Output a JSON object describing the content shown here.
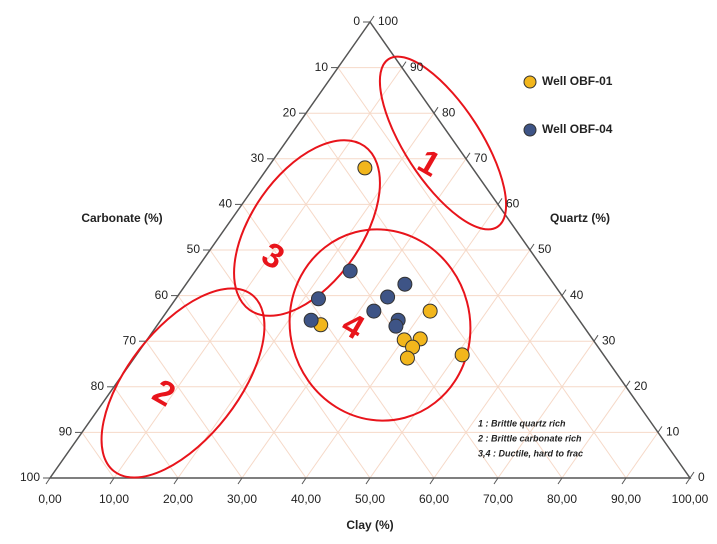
{
  "chart_data": {
    "type": "ternary",
    "axes": {
      "bottom": "Clay (%)",
      "left": "Carbonate (%)",
      "right": "Quartz (%)"
    },
    "clay_ticks": [
      {
        "value": 0,
        "label": "0,00"
      },
      {
        "value": 10,
        "label": "10,00"
      },
      {
        "value": 20,
        "label": "20,00"
      },
      {
        "value": 30,
        "label": "30,00"
      },
      {
        "value": 40,
        "label": "40,00"
      },
      {
        "value": 50,
        "label": "50,00"
      },
      {
        "value": 60,
        "label": "60,00"
      },
      {
        "value": 70,
        "label": "70,00"
      },
      {
        "value": 80,
        "label": "80,00"
      },
      {
        "value": 90,
        "label": "90,00"
      },
      {
        "value": 100,
        "label": "100,00"
      }
    ],
    "carbonate_ticks": [
      0,
      10,
      20,
      30,
      40,
      50,
      60,
      70,
      80,
      90,
      100
    ],
    "quartz_ticks": [
      0,
      10,
      20,
      30,
      40,
      50,
      60,
      70,
      80,
      90,
      100
    ],
    "grid": true,
    "grid_color": "#f6d9c8",
    "series": [
      {
        "name": "Well OBF-01",
        "color": "#f2b61c",
        "clay": [
          15.2,
          25.5,
          41.1,
          40.2,
          42.6,
          42.3,
          42.7,
          50.9
        ],
        "quartz": [
          68.0,
          33.6,
          36.6,
          30.3,
          30.5,
          28.7,
          26.3,
          27.0
        ],
        "carbonate": [
          16.8,
          40.9,
          22.3,
          29.5,
          26.9,
          29.0,
          31.0,
          22.1
        ]
      },
      {
        "name": "Well OBF-04",
        "color": "#3e5486",
        "clay": [
          24.2,
          22.3,
          23.5,
          34.2,
          32.9,
          32.3,
          37.1,
          37.4
        ],
        "quartz": [
          45.4,
          39.3,
          34.6,
          42.5,
          39.7,
          36.6,
          34.6,
          33.3
        ],
        "carbonate": [
          30.4,
          38.4,
          41.9,
          23.3,
          27.4,
          31.1,
          28.3,
          29.3
        ]
      }
    ],
    "regions": [
      "1",
      "2",
      "3",
      "4"
    ],
    "notes": [
      "1 : Brittle quartz rich",
      "2 : Brittle carbonate rich",
      "3,4 : Ductile, hard to frac"
    ]
  }
}
